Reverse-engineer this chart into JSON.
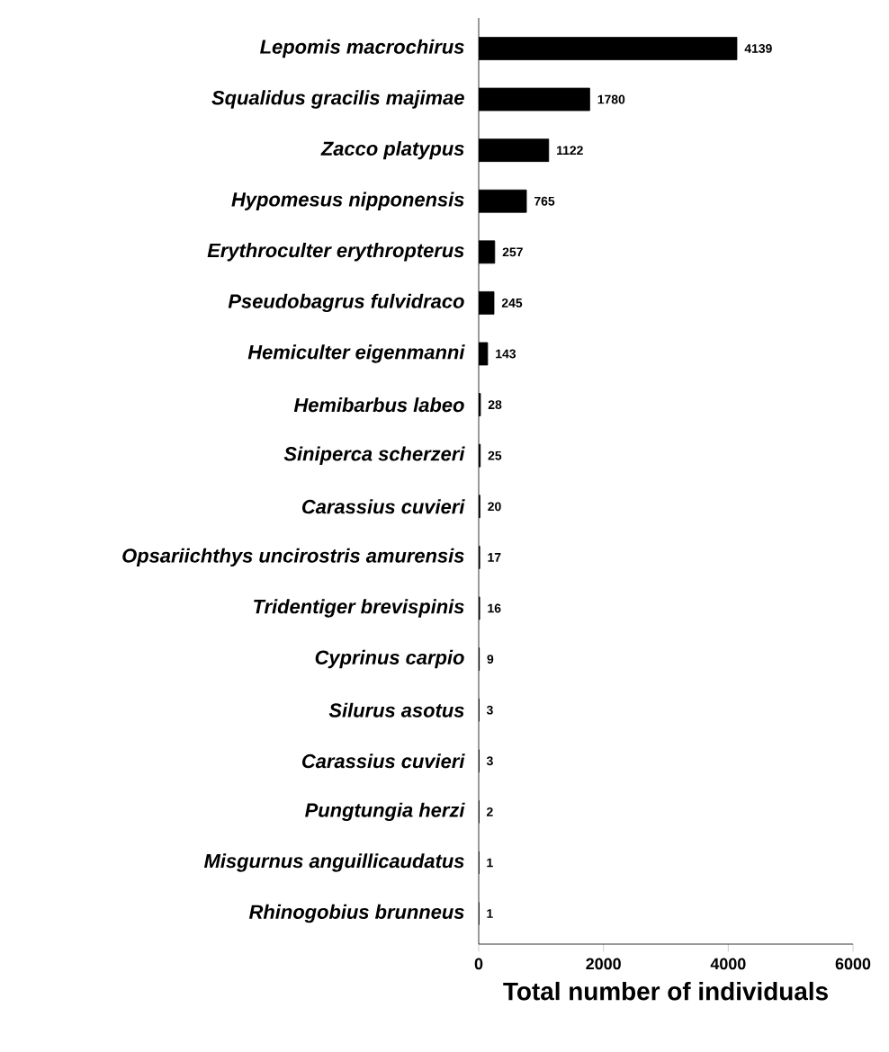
{
  "chart_data": {
    "type": "bar",
    "orientation": "horizontal",
    "xlabel": "Total number of individuals",
    "categories": [
      "Lepomis macrochirus",
      "Squalidus gracilis majimae",
      "Zacco platypus",
      "Hypomesus nipponensis",
      "Erythroculter erythropterus",
      "Pseudobagrus fulvidraco",
      "Hemiculter eigenmanni",
      "Hemibarbus labeo",
      "Siniperca scherzeri",
      "Carassius cuvieri",
      "Opsariichthys uncirostris amurensis",
      "Tridentiger brevispinis",
      "Cyprinus carpio",
      "Silurus asotus",
      "Carassius cuvieri",
      "Pungtungia herzi",
      "Misgurnus anguillicaudatus",
      "Rhinogobius brunneus"
    ],
    "values": [
      4139,
      1780,
      1122,
      765,
      257,
      245,
      143,
      28,
      25,
      20,
      17,
      16,
      9,
      3,
      3,
      2,
      1,
      1
    ],
    "color": "#000000",
    "xlim": [
      0,
      6000
    ],
    "xticks": [
      0,
      2000,
      4000,
      6000
    ],
    "data_labels": true,
    "grid": false
  }
}
